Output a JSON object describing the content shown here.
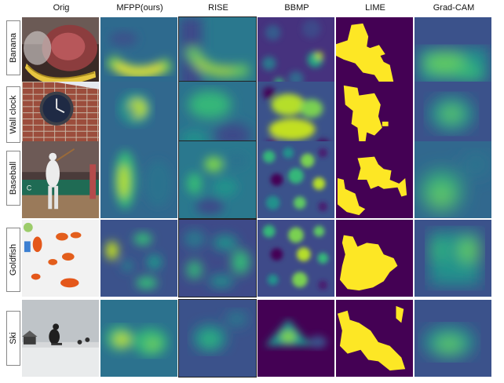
{
  "columns": [
    "Orig",
    "MFPP(ours)",
    "RISE",
    "BBMP",
    "LIME",
    "Grad-CAM"
  ],
  "rows": [
    "Banana",
    "Wall clock",
    "Baseball",
    "Goldfish",
    "Ski"
  ],
  "colormap": {
    "low": "#440154",
    "mid1": "#31688e",
    "mid2": "#35b779",
    "high": "#fde725"
  }
}
